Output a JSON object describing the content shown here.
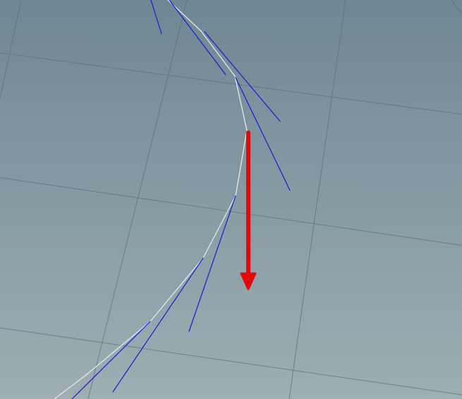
{
  "viewport": {
    "background_top": "#6f8794",
    "background_bottom": "#9eaeb2"
  },
  "colors": {
    "grid": "#5f7079",
    "curve": "#e6e8e8",
    "tangent": "#1a1ad6",
    "arrow": "#e10a0a"
  },
  "icons": {
    "arrow": "arrow-down-icon"
  }
}
